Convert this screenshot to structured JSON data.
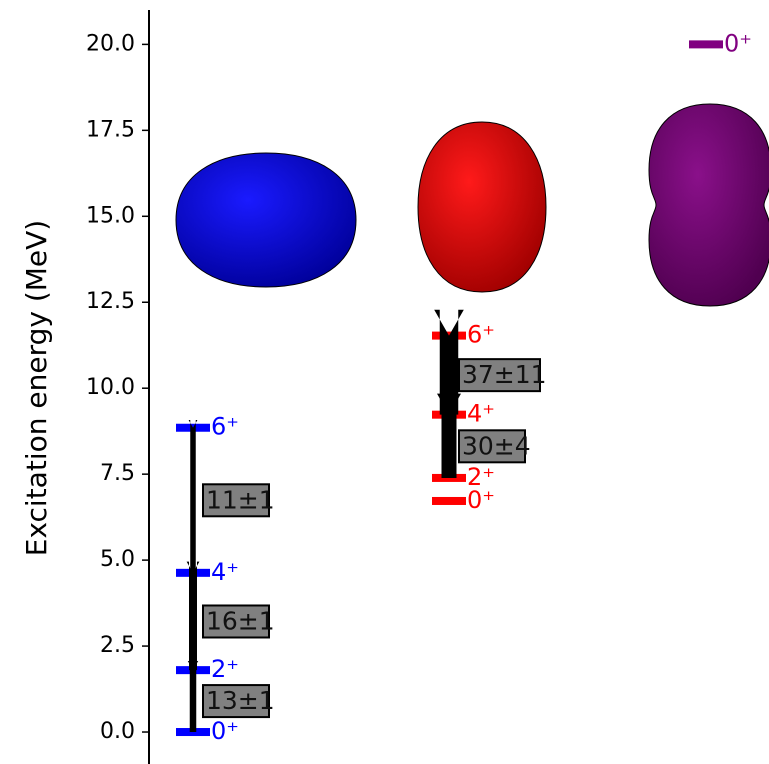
{
  "chart_data": {
    "type": "level-scheme",
    "ylabel": "Excitation energy (MeV)",
    "ylim": [
      -0.93,
      21.0
    ],
    "yticks": [
      {
        "value": 0,
        "label": "0.0"
      },
      {
        "value": 2.5,
        "label": "2.5"
      },
      {
        "value": 5,
        "label": "5.0"
      },
      {
        "value": 7.5,
        "label": "7.5"
      },
      {
        "value": 10,
        "label": "10.0"
      },
      {
        "value": 12.5,
        "label": "12.5"
      },
      {
        "value": 15,
        "label": "15.0"
      },
      {
        "value": 17.5,
        "label": "17.5"
      },
      {
        "value": 20,
        "label": "20.0"
      }
    ],
    "bands": [
      {
        "color": "#0000ff",
        "levels": [
          0,
          1.8,
          4.63,
          8.85
        ],
        "level_labels": [
          "0⁺",
          "2⁺",
          "4⁺",
          "6⁺"
        ],
        "transitions": [
          null,
          13,
          16,
          11
        ],
        "errors": [
          null,
          1,
          1,
          1
        ],
        "value_labels": [
          null,
          "13±1",
          "16±1",
          "11±1"
        ]
      },
      {
        "color": "#ff0000",
        "levels": [
          6.72,
          7.39,
          9.23,
          11.53
        ],
        "level_labels": [
          "0⁺",
          "2⁺",
          "4⁺",
          "6⁺"
        ],
        "transitions": [
          null,
          null,
          30,
          37
        ],
        "errors": [
          null,
          null,
          4,
          11
        ],
        "value_labels": [
          null,
          null,
          "30±4",
          "37±11"
        ]
      },
      {
        "color": "#800080",
        "levels": [
          20
        ],
        "level_labels": [
          "0⁺"
        ],
        "transitions": [
          null
        ],
        "errors": [
          null
        ],
        "value_labels": [
          null
        ]
      }
    ]
  }
}
